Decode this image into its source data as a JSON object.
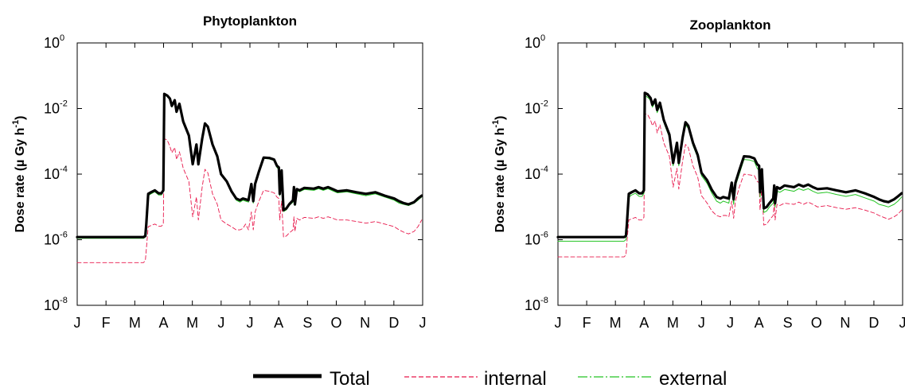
{
  "legend": {
    "total_label": "Total",
    "internal_label": "internal",
    "external_label": "external"
  },
  "colors": {
    "total": "#000000",
    "internal": "#e8174b",
    "external": "#23c423",
    "axes": "#000000"
  },
  "chart_data": [
    {
      "type": "line",
      "title": "Phytoplankton",
      "ylabel": "Dose rate (µ Gy h-1)",
      "xlabel": "",
      "yscale": "log",
      "ylim": [
        1e-08,
        1
      ],
      "yticks": [
        {
          "base": "10",
          "exp": "-8",
          "value": 1e-08
        },
        {
          "base": "10",
          "exp": "-6",
          "value": 1e-06
        },
        {
          "base": "10",
          "exp": "-4",
          "value": 0.0001
        },
        {
          "base": "10",
          "exp": "-2",
          "value": 0.01
        },
        {
          "base": "10",
          "exp": "0",
          "value": 1
        }
      ],
      "xlim": [
        0,
        365
      ],
      "xticks": [
        "J",
        "F",
        "M",
        "A",
        "M",
        "J",
        "J",
        "A",
        "S",
        "O",
        "N",
        "D",
        "J"
      ],
      "x_unit": "day of year",
      "grid": false,
      "legend_position": "bottom",
      "series": [
        {
          "name": "Total",
          "x": [
            0,
            30,
            60,
            70,
            72,
            73,
            75,
            78,
            82,
            86,
            89,
            91,
            92,
            95,
            98,
            100,
            103,
            105,
            108,
            112,
            118,
            122,
            126,
            128,
            132,
            135,
            138,
            143,
            148,
            152,
            158,
            163,
            168,
            172,
            175,
            178,
            181,
            184,
            186,
            188,
            192,
            197,
            203,
            208,
            211,
            213,
            214,
            216,
            218,
            221,
            224,
            228,
            229,
            230,
            232,
            235,
            240,
            250,
            255,
            260,
            265,
            270,
            275,
            285,
            295,
            305,
            315,
            325,
            335,
            340,
            345,
            350,
            356,
            360,
            364
          ],
          "values": [
            1.2e-06,
            1.2e-06,
            1.2e-06,
            1.2e-06,
            1.3e-06,
            3e-06,
            2.5e-05,
            2.8e-05,
            3.2e-05,
            2.6e-05,
            2.6e-05,
            3.2e-05,
            0.028,
            0.025,
            0.02,
            0.012,
            0.018,
            0.008,
            0.014,
            0.004,
            0.0015,
            0.0002,
            0.0008,
            0.0002,
            0.0012,
            0.0035,
            0.0028,
            0.0008,
            0.00035,
            0.0001,
            6e-05,
            3e-05,
            1.8e-05,
            1.6e-05,
            1.8e-05,
            1.7e-05,
            1.6e-05,
            5e-05,
            1.5e-05,
            5e-05,
            0.00012,
            0.00032,
            0.00031,
            0.00028,
            0.00018,
            0.00016,
            2.5e-05,
            0.00013,
            8e-06,
            9e-06,
            1.2e-05,
            1.6e-05,
            4e-05,
            1.2e-05,
            3.5e-05,
            3.2e-05,
            3.8e-05,
            3.6e-05,
            4e-05,
            3.6e-05,
            4e-05,
            3.5e-05,
            3e-05,
            3.2e-05,
            2.8e-05,
            2.5e-05,
            2.8e-05,
            2.2e-05,
            1.8e-05,
            1.5e-05,
            1.3e-05,
            1.2e-05,
            1.4e-05,
            1.8e-05,
            2.2e-05
          ]
        },
        {
          "name": "internal",
          "x": [
            0,
            30,
            60,
            70,
            72,
            73,
            75,
            78,
            82,
            86,
            89,
            91,
            92,
            95,
            98,
            100,
            103,
            105,
            108,
            112,
            118,
            122,
            126,
            128,
            132,
            135,
            138,
            143,
            148,
            152,
            158,
            163,
            168,
            172,
            175,
            178,
            181,
            184,
            186,
            188,
            192,
            197,
            203,
            208,
            211,
            213,
            214,
            216,
            218,
            221,
            224,
            228,
            229,
            230,
            232,
            235,
            240,
            250,
            255,
            260,
            265,
            270,
            275,
            285,
            295,
            305,
            315,
            325,
            335,
            340,
            345,
            350,
            356,
            360,
            364
          ],
          "values": [
            2e-07,
            2e-07,
            2e-07,
            2e-07,
            2.3e-07,
            5e-07,
            2.5e-06,
            2.7e-06,
            3e-06,
            2.6e-06,
            2.6e-06,
            3e-06,
            0.0012,
            0.0011,
            0.0007,
            0.00045,
            0.00065,
            0.00028,
            0.00048,
            0.00015,
            6e-05,
            5e-06,
            2e-05,
            4e-06,
            4e-05,
            0.00014,
            0.00011,
            2.5e-05,
            1.2e-05,
            4e-06,
            3e-06,
            2.5e-06,
            2e-06,
            2e-06,
            2.2e-06,
            3e-06,
            2e-06,
            7e-06,
            2e-06,
            7e-06,
            1.5e-05,
            3.2e-05,
            3e-05,
            2.7e-05,
            2e-05,
            1.8e-05,
            4e-06,
            1.5e-05,
            1.2e-06,
            1.3e-06,
            1.6e-06,
            2e-06,
            5e-06,
            1.8e-06,
            4.5e-06,
            4e-06,
            4.8e-06,
            4.5e-06,
            5e-06,
            4.5e-06,
            5e-06,
            4.5e-06,
            4e-06,
            4e-06,
            3.6e-06,
            3.2e-06,
            3.6e-06,
            3e-06,
            2.5e-06,
            2e-06,
            1.7e-06,
            1.5e-06,
            1.8e-06,
            2.5e-06,
            4e-06
          ]
        },
        {
          "name": "external",
          "x": [
            0,
            30,
            60,
            70,
            72,
            73,
            75,
            78,
            82,
            86,
            89,
            91,
            92,
            95,
            98,
            100,
            103,
            105,
            108,
            112,
            118,
            122,
            126,
            128,
            132,
            135,
            138,
            143,
            148,
            152,
            158,
            163,
            168,
            172,
            175,
            178,
            181,
            184,
            186,
            188,
            192,
            197,
            203,
            208,
            211,
            213,
            214,
            216,
            218,
            221,
            224,
            228,
            229,
            230,
            232,
            235,
            240,
            250,
            255,
            260,
            265,
            270,
            275,
            285,
            295,
            305,
            315,
            325,
            335,
            340,
            345,
            350,
            356,
            360,
            364
          ],
          "values": [
            1.1e-06,
            1.1e-06,
            1.1e-06,
            1.1e-06,
            1.2e-06,
            2.7e-06,
            2.2e-05,
            2.5e-05,
            2.9e-05,
            2.3e-05,
            2.3e-05,
            2.9e-05,
            0.026,
            0.023,
            0.019,
            0.011,
            0.017,
            0.0075,
            0.013,
            0.0038,
            0.0014,
            0.00019,
            0.00075,
            0.00019,
            0.0011,
            0.0033,
            0.0026,
            0.00075,
            0.00033,
            9.5e-05,
            5.6e-05,
            2.8e-05,
            1.6e-05,
            1.4e-05,
            1.6e-05,
            1.5e-05,
            1.4e-05,
            4.6e-05,
            1.3e-05,
            4.6e-05,
            0.00011,
            0.0003,
            0.00029,
            0.00026,
            0.00016,
            0.00014,
            2.2e-05,
            0.00012,
            7.2e-06,
            8.1e-06,
            1.1e-05,
            1.4e-05,
            3.6e-05,
            1.1e-05,
            3.2e-05,
            2.9e-05,
            3.4e-05,
            3.2e-05,
            3.6e-05,
            3.2e-05,
            3.6e-05,
            3.1e-05,
            2.7e-05,
            2.9e-05,
            2.5e-05,
            2.2e-05,
            2.5e-05,
            2e-05,
            1.6e-05,
            1.3e-05,
            1.2e-05,
            1.1e-05,
            1.3e-05,
            1.6e-05,
            2e-05
          ]
        }
      ]
    },
    {
      "type": "line",
      "title": "Zooplankton",
      "ylabel": "Dose rate (µ Gy h-1)",
      "xlabel": "",
      "yscale": "log",
      "ylim": [
        1e-08,
        1
      ],
      "yticks": [
        {
          "base": "10",
          "exp": "-8",
          "value": 1e-08
        },
        {
          "base": "10",
          "exp": "-6",
          "value": 1e-06
        },
        {
          "base": "10",
          "exp": "-4",
          "value": 0.0001
        },
        {
          "base": "10",
          "exp": "-2",
          "value": 0.01
        },
        {
          "base": "10",
          "exp": "0",
          "value": 1
        }
      ],
      "xlim": [
        0,
        365
      ],
      "xticks": [
        "J",
        "F",
        "M",
        "A",
        "M",
        "J",
        "J",
        "A",
        "S",
        "O",
        "N",
        "D",
        "J"
      ],
      "x_unit": "day of year",
      "grid": false,
      "legend_position": "bottom",
      "series": [
        {
          "name": "Total",
          "x": [
            0,
            30,
            60,
            70,
            72,
            73,
            75,
            78,
            82,
            86,
            89,
            91,
            92,
            95,
            98,
            100,
            103,
            105,
            108,
            112,
            118,
            122,
            126,
            128,
            132,
            135,
            138,
            143,
            148,
            152,
            158,
            163,
            168,
            172,
            175,
            178,
            181,
            184,
            186,
            188,
            192,
            197,
            203,
            208,
            211,
            213,
            214,
            216,
            218,
            221,
            224,
            228,
            229,
            230,
            232,
            235,
            240,
            250,
            255,
            260,
            265,
            270,
            275,
            285,
            295,
            305,
            315,
            325,
            335,
            340,
            345,
            350,
            356,
            360,
            364
          ],
          "values": [
            1.2e-06,
            1.2e-06,
            1.2e-06,
            1.2e-06,
            1.3e-06,
            3e-06,
            2.5e-05,
            2.8e-05,
            3.2e-05,
            2.6e-05,
            2.6e-05,
            3.2e-05,
            0.03,
            0.027,
            0.021,
            0.013,
            0.019,
            0.009,
            0.015,
            0.0045,
            0.0016,
            0.00022,
            0.0009,
            0.00022,
            0.0013,
            0.0038,
            0.003,
            0.0009,
            0.00038,
            0.00011,
            6.5e-05,
            3.3e-05,
            2e-05,
            1.8e-05,
            2e-05,
            1.9e-05,
            1.8e-05,
            5.5e-05,
            1.7e-05,
            5.5e-05,
            0.00013,
            0.00035,
            0.00034,
            0.0003,
            0.0002,
            0.00018,
            2.8e-05,
            0.00014,
            9e-06,
            1e-05,
            1.3e-05,
            1.8e-05,
            4.5e-05,
            1.3e-05,
            4e-05,
            3.6e-05,
            4.5e-05,
            4e-05,
            4.8e-05,
            4.2e-05,
            4.8e-05,
            4e-05,
            3.5e-05,
            3.7e-05,
            3.2e-05,
            2.8e-05,
            3.2e-05,
            2.6e-05,
            2e-05,
            1.7e-05,
            1.5e-05,
            1.4e-05,
            1.7e-05,
            2.1e-05,
            2.6e-05
          ]
        },
        {
          "name": "internal",
          "x": [
            0,
            30,
            60,
            70,
            72,
            73,
            75,
            78,
            82,
            86,
            89,
            91,
            92,
            95,
            98,
            100,
            103,
            105,
            108,
            112,
            118,
            122,
            126,
            128,
            132,
            135,
            138,
            143,
            148,
            152,
            158,
            163,
            168,
            172,
            175,
            178,
            181,
            184,
            186,
            188,
            192,
            197,
            203,
            208,
            211,
            213,
            214,
            216,
            218,
            221,
            224,
            228,
            229,
            230,
            232,
            235,
            240,
            250,
            255,
            260,
            265,
            270,
            275,
            285,
            295,
            305,
            315,
            325,
            335,
            340,
            345,
            350,
            356,
            360,
            364
          ],
          "values": [
            3e-07,
            3e-07,
            3e-07,
            3e-07,
            3.4e-07,
            8e-07,
            4e-06,
            4.3e-06,
            4.8e-06,
            4e-06,
            4e-06,
            4.8e-06,
            0.007,
            0.0065,
            0.0045,
            0.003,
            0.0042,
            0.0018,
            0.0032,
            0.0009,
            0.00035,
            4e-05,
            0.00015,
            3.5e-05,
            0.00025,
            0.0008,
            0.00065,
            0.00018,
            8e-05,
            2.2e-05,
            1.3e-05,
            7.5e-06,
            5.5e-06,
            5e-06,
            5.5e-06,
            5.5e-06,
            5e-06,
            1.5e-05,
            4.5e-06,
            1.5e-05,
            4e-05,
            0.0001,
            9.5e-05,
            9e-05,
            6e-05,
            5.5e-05,
            8e-06,
            4e-05,
            2.8e-06,
            3e-06,
            4e-06,
            5.5e-06,
            1.3e-05,
            4e-06,
            1.2e-05,
            1.1e-05,
            1.3e-05,
            1.2e-05,
            1.4e-05,
            1.2e-05,
            1.4e-05,
            1.2e-05,
            1e-05,
            1.1e-05,
            9.5e-06,
            8.5e-06,
            9.5e-06,
            8e-06,
            6.5e-06,
            5.5e-06,
            4.8e-06,
            4.2e-06,
            5e-06,
            6e-06,
            8e-06
          ]
        },
        {
          "name": "external",
          "x": [
            0,
            30,
            60,
            70,
            72,
            73,
            75,
            78,
            82,
            86,
            89,
            91,
            92,
            95,
            98,
            100,
            103,
            105,
            108,
            112,
            118,
            122,
            126,
            128,
            132,
            135,
            138,
            143,
            148,
            152,
            158,
            163,
            168,
            172,
            175,
            178,
            181,
            184,
            186,
            188,
            192,
            197,
            203,
            208,
            211,
            213,
            214,
            216,
            218,
            221,
            224,
            228,
            229,
            230,
            232,
            235,
            240,
            250,
            255,
            260,
            265,
            270,
            275,
            285,
            295,
            305,
            315,
            325,
            335,
            340,
            345,
            350,
            356,
            360,
            364
          ],
          "values": [
            9e-07,
            9e-07,
            9e-07,
            9e-07,
            1e-06,
            2.2e-06,
            2e-05,
            2.3e-05,
            2.6e-05,
            2.1e-05,
            2.1e-05,
            2.6e-05,
            0.025,
            0.022,
            0.018,
            0.011,
            0.016,
            0.0075,
            0.012,
            0.0038,
            0.0013,
            0.00018,
            0.00075,
            0.00018,
            0.0011,
            0.0032,
            0.0025,
            0.00075,
            0.00032,
            9e-05,
            5.2e-05,
            2.6e-05,
            1.5e-05,
            1.3e-05,
            1.5e-05,
            1.4e-05,
            1.3e-05,
            4.4e-05,
            1.2e-05,
            4.4e-05,
            0.0001,
            0.00028,
            0.00027,
            0.00024,
            0.00015,
            0.00013,
            2e-05,
            0.00011,
            6.8e-06,
            7.5e-06,
            1e-05,
            1.3e-05,
            3.4e-05,
            1e-05,
            3e-05,
            2.8e-05,
            3.4e-05,
            3e-05,
            3.6e-05,
            3.2e-05,
            3.6e-05,
            3e-05,
            2.6e-05,
            2.8e-05,
            2.4e-05,
            2.1e-05,
            2.4e-05,
            1.9e-05,
            1.5e-05,
            1.2e-05,
            1.1e-05,
            1e-05,
            1.2e-05,
            1.5e-05,
            2e-05
          ]
        }
      ]
    }
  ]
}
